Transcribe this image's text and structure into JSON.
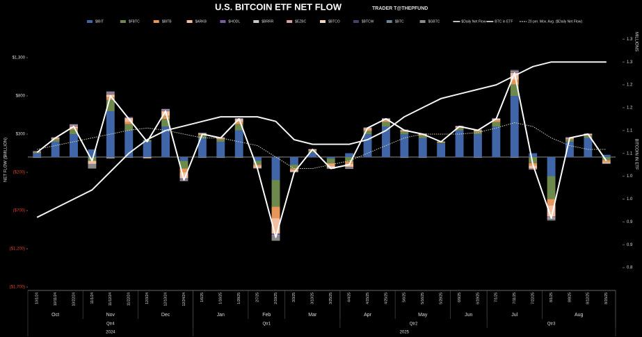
{
  "chart_data": {
    "type": "bar",
    "title": "U.S. BITCOIN ETF NET FLOW",
    "subtitle": "TRADER T@THEPFUND",
    "y_label": "NET FLOW ($MILLION)",
    "y2_label": "BITCOIN IN ETF",
    "y2_unit": "MILLIONS",
    "negative_tick_color": "#e0402a",
    "categories": [
      "10/1/24",
      "10/11/24",
      "10/22/24",
      "11/1/24",
      "11/12/24",
      "11/22/24",
      "12/3/24",
      "12/13/24",
      "12/24/24",
      "1/6/25",
      "1/16/25",
      "1/28/25",
      "2/7/25",
      "2/19/25",
      "3/3/25",
      "3/13/25",
      "3/25/25",
      "4/4/25",
      "4/15/25",
      "4/25/25",
      "5/6/25",
      "5/16/25",
      "5/28/25",
      "6/9/25",
      "6/19/25",
      "7/1/25",
      "7/11/25",
      "7/22/25",
      "8/1/25",
      "8/8/25",
      "8/12/25",
      "8/15/25"
    ],
    "x_groups": [
      [
        {
          "label": "Oct",
          "from": 0,
          "to": 2
        },
        {
          "label": "Nov",
          "from": 3,
          "to": 5
        },
        {
          "label": "Dec",
          "from": 6,
          "to": 8
        },
        {
          "label": "Jan",
          "from": 9,
          "to": 11
        },
        {
          "label": "Feb",
          "from": 12,
          "to": 13
        },
        {
          "label": "Mar",
          "from": 14,
          "to": 16
        },
        {
          "label": "Apr",
          "from": 17,
          "to": 19
        },
        {
          "label": "May",
          "from": 20,
          "to": 22
        },
        {
          "label": "Jun",
          "from": 23,
          "to": 24
        },
        {
          "label": "Jul",
          "from": 25,
          "to": 27
        },
        {
          "label": "Aug",
          "from": 28,
          "to": 31
        }
      ],
      [
        {
          "label": "Qtr4",
          "from": 0,
          "to": 8
        },
        {
          "label": "Qtr1",
          "from": 9,
          "to": 16
        },
        {
          "label": "Qtr2",
          "from": 17,
          "to": 24
        },
        {
          "label": "Qtr3",
          "from": 25,
          "to": 31
        }
      ],
      [
        {
          "label": "2024",
          "from": 0,
          "to": 8
        },
        {
          "label": "2025",
          "from": 9,
          "to": 31
        }
      ]
    ],
    "ylim": [
      -1745,
      1782
    ],
    "yticks": [
      {
        "value": 1300,
        "label": "$1,300"
      },
      {
        "value": 800,
        "label": "$800"
      },
      {
        "value": 300,
        "label": "$300"
      },
      {
        "value": -200,
        "label": "($200)"
      },
      {
        "value": -700,
        "label": "($700)"
      },
      {
        "value": -1200,
        "label": "($1,200)"
      },
      {
        "value": -1700,
        "label": "($1,700)"
      }
    ],
    "y2lim": [
      0.8,
      1.39
    ],
    "y2ticks": [
      {
        "value": 1.35,
        "label": "1.3"
      },
      {
        "value": 1.3,
        "label": "1.3"
      },
      {
        "value": 1.25,
        "label": "1.2"
      },
      {
        "value": 1.2,
        "label": "1.2"
      },
      {
        "value": 1.15,
        "label": "1.1"
      },
      {
        "value": 1.1,
        "label": "1.1"
      },
      {
        "value": 1.05,
        "label": "1.0"
      },
      {
        "value": 1.0,
        "label": "1.0"
      },
      {
        "value": 0.95,
        "label": "0.9"
      },
      {
        "value": 0.9,
        "label": "0.9"
      },
      {
        "value": 0.85,
        "label": "0.8"
      }
    ],
    "series": [
      {
        "name": "$IBIT",
        "type": "bar",
        "color": "#4066a8",
        "values": [
          50,
          200,
          300,
          100,
          600,
          350,
          200,
          400,
          -50,
          250,
          200,
          350,
          -50,
          -300,
          -100,
          60,
          -20,
          50,
          300,
          400,
          300,
          250,
          180,
          350,
          300,
          400,
          800,
          50,
          -250,
          200,
          250,
          30
        ]
      },
      {
        "name": "$FBTC",
        "type": "bar",
        "color": "#6d8a4c",
        "values": [
          10,
          30,
          60,
          -50,
          150,
          80,
          20,
          100,
          -100,
          40,
          30,
          80,
          -50,
          -350,
          -50,
          20,
          -60,
          -60,
          40,
          60,
          30,
          30,
          10,
          30,
          30,
          60,
          150,
          -80,
          -300,
          30,
          30,
          -40
        ]
      },
      {
        "name": "$BITB",
        "type": "bar",
        "color": "#e8955a",
        "values": [
          5,
          10,
          20,
          0,
          30,
          30,
          0,
          40,
          -50,
          10,
          10,
          30,
          -20,
          -150,
          -20,
          10,
          -30,
          -30,
          20,
          20,
          10,
          10,
          5,
          10,
          10,
          20,
          60,
          -30,
          -80,
          10,
          10,
          -20
        ]
      },
      {
        "name": "$ARKB",
        "type": "bar",
        "color": "#f2bfa0",
        "values": [
          5,
          10,
          20,
          -40,
          40,
          50,
          -10,
          60,
          -80,
          10,
          10,
          40,
          -20,
          -200,
          -20,
          10,
          -30,
          -40,
          20,
          20,
          10,
          10,
          5,
          10,
          10,
          20,
          90,
          -40,
          -150,
          10,
          10,
          -20
        ]
      },
      {
        "name": "$HODL",
        "type": "bar",
        "color": "#7b5ca3",
        "values": [
          5,
          5,
          10,
          0,
          10,
          10,
          0,
          10,
          -10,
          5,
          5,
          5,
          0,
          -20,
          0,
          0,
          -5,
          -5,
          5,
          5,
          5,
          5,
          0,
          5,
          5,
          5,
          10,
          -5,
          -10,
          5,
          5,
          0
        ]
      },
      {
        "name": "$BRRR",
        "type": "bar",
        "color": "#c9c9c9",
        "values": [
          0,
          0,
          5,
          0,
          5,
          0,
          0,
          5,
          0,
          0,
          0,
          0,
          0,
          -5,
          0,
          0,
          0,
          0,
          0,
          0,
          0,
          0,
          0,
          0,
          0,
          0,
          5,
          0,
          -5,
          0,
          0,
          0
        ]
      },
      {
        "name": "$EZBC",
        "type": "bar",
        "color": "#d9a3a3",
        "values": [
          0,
          0,
          5,
          0,
          5,
          0,
          0,
          5,
          0,
          0,
          0,
          0,
          0,
          -5,
          0,
          0,
          0,
          0,
          0,
          0,
          0,
          0,
          0,
          0,
          0,
          0,
          5,
          0,
          -5,
          0,
          0,
          0
        ]
      },
      {
        "name": "$BTCO",
        "type": "bar",
        "color": "#f5d8b4",
        "values": [
          0,
          0,
          5,
          0,
          5,
          0,
          0,
          5,
          0,
          0,
          0,
          0,
          0,
          -5,
          0,
          0,
          0,
          0,
          0,
          0,
          0,
          0,
          0,
          0,
          0,
          0,
          5,
          0,
          -5,
          0,
          0,
          0
        ]
      },
      {
        "name": "$BTCW",
        "type": "bar",
        "color": "#4d3d6d",
        "values": [
          0,
          0,
          0,
          0,
          5,
          0,
          0,
          0,
          0,
          0,
          0,
          0,
          0,
          0,
          0,
          0,
          0,
          0,
          0,
          0,
          0,
          0,
          0,
          0,
          0,
          0,
          5,
          0,
          0,
          0,
          0,
          0
        ]
      },
      {
        "name": "$BTC",
        "type": "bar",
        "color": "#6c8494",
        "values": [
          5,
          5,
          5,
          0,
          10,
          5,
          5,
          5,
          -5,
          5,
          5,
          5,
          0,
          -10,
          0,
          5,
          0,
          0,
          5,
          5,
          5,
          5,
          5,
          5,
          5,
          5,
          10,
          0,
          -5,
          5,
          5,
          0
        ]
      },
      {
        "name": "$GBTC",
        "type": "bar",
        "color": "#8a8a8a",
        "values": [
          -10,
          0,
          0,
          -60,
          -20,
          -10,
          -10,
          0,
          -20,
          -10,
          -10,
          -10,
          -10,
          -50,
          -10,
          0,
          -10,
          -20,
          0,
          0,
          -10,
          -10,
          0,
          0,
          -10,
          0,
          -10,
          -10,
          -20,
          0,
          0,
          -10
        ]
      },
      {
        "name": "$Daily Net Flow",
        "type": "line",
        "color": "#ffffff",
        "values": [
          60,
          250,
          400,
          -50,
          800,
          500,
          200,
          600,
          -300,
          300,
          250,
          500,
          -150,
          -1050,
          -200,
          100,
          -150,
          -100,
          380,
          500,
          350,
          300,
          200,
          400,
          350,
          500,
          1100,
          -100,
          -800,
          250,
          300,
          -50
        ]
      },
      {
        "name": "BTC in ETF",
        "type": "line",
        "axis": "y2",
        "color": "#f2f2f2",
        "values": [
          0.96,
          0.98,
          1.0,
          1.02,
          1.06,
          1.1,
          1.13,
          1.15,
          1.16,
          1.17,
          1.18,
          1.18,
          1.18,
          1.17,
          1.13,
          1.12,
          1.12,
          1.12,
          1.13,
          1.15,
          1.18,
          1.2,
          1.22,
          1.23,
          1.24,
          1.25,
          1.27,
          1.29,
          1.3,
          1.3,
          1.3,
          1.3
        ]
      },
      {
        "name": "20 per. Mov. Avg. ($Daily Net Flow)",
        "type": "line",
        "dashed": true,
        "color": "#d8d8b8",
        "values": [
          100,
          150,
          200,
          250,
          300,
          350,
          380,
          350,
          300,
          250,
          250,
          200,
          150,
          0,
          -150,
          -150,
          -100,
          -50,
          50,
          150,
          250,
          300,
          300,
          300,
          320,
          380,
          450,
          400,
          250,
          150,
          100,
          100
        ]
      }
    ]
  }
}
